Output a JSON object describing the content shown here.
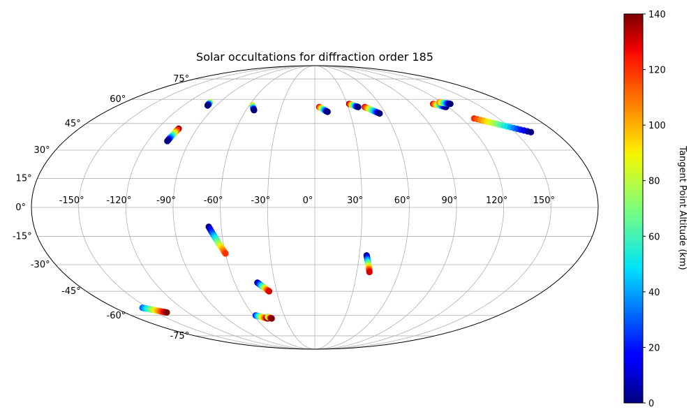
{
  "chart_data": {
    "type": "scatter",
    "projection": "mollweide",
    "title": "Solar occultations for diffraction order 185",
    "x_ticks": [
      "-150°",
      "-120°",
      "-90°",
      "-60°",
      "-30°",
      "0°",
      "30°",
      "60°",
      "90°",
      "120°",
      "150°"
    ],
    "x_tick_values": [
      -150,
      -120,
      -90,
      -60,
      -30,
      0,
      30,
      60,
      90,
      120,
      150
    ],
    "y_ticks": [
      "-75°",
      "-60°",
      "-45°",
      "-30°",
      "-15°",
      "0°",
      "15°",
      "30°",
      "45°",
      "60°",
      "75°"
    ],
    "y_tick_values": [
      -75,
      -60,
      -45,
      -30,
      -15,
      0,
      15,
      30,
      45,
      60,
      75
    ],
    "grid": true,
    "colorbar": {
      "label": "Tangent Point Altitude (km)",
      "colormap": "jet",
      "range": [
        0,
        140
      ],
      "ticks": [
        "0",
        "20",
        "40",
        "60",
        "80",
        "100",
        "120",
        "140"
      ],
      "tick_values": [
        0,
        20,
        40,
        60,
        80,
        100,
        120,
        140
      ]
    },
    "tracks": [
      {
        "start": [
          -104,
          42
        ],
        "end": [
          -106,
          35
        ],
        "alt_start": 140,
        "alt_end": 0
      },
      {
        "start": [
          -99,
          58
        ],
        "end": [
          -98,
          56
        ],
        "alt_start": 90,
        "alt_end": 0
      },
      {
        "start": [
          -57,
          56
        ],
        "end": [
          -53,
          53
        ],
        "alt_start": 100,
        "alt_end": 0
      },
      {
        "start": [
          4,
          55
        ],
        "end": [
          11,
          52
        ],
        "alt_start": 130,
        "alt_end": 0
      },
      {
        "start": [
          32,
          57
        ],
        "end": [
          39,
          55
        ],
        "alt_start": 140,
        "alt_end": 0
      },
      {
        "start": [
          45,
          55
        ],
        "end": [
          55,
          51
        ],
        "alt_start": 130,
        "alt_end": 0
      },
      {
        "start": [
          110,
          57
        ],
        "end": [
          118,
          55
        ],
        "alt_start": 130,
        "alt_end": 0
      },
      {
        "start": [
          118,
          58
        ],
        "end": [
          126,
          57
        ],
        "alt_start": 110,
        "alt_end": 0
      },
      {
        "start": [
          130,
          48
        ],
        "end": [
          162,
          40
        ],
        "alt_start": 120,
        "alt_end": 0
      },
      {
        "start": [
          -68,
          -10
        ],
        "end": [
          -60,
          -24
        ],
        "alt_start": 0,
        "alt_end": 120
      },
      {
        "start": [
          -43,
          -40
        ],
        "end": [
          -36,
          -45
        ],
        "alt_start": 0,
        "alt_end": 130
      },
      {
        "start": [
          -58,
          -60
        ],
        "end": [
          -48,
          -62
        ],
        "alt_start": 20,
        "alt_end": 140
      },
      {
        "start": [
          -47,
          -61
        ],
        "end": [
          -44,
          -62
        ],
        "alt_start": 60,
        "alt_end": 140
      },
      {
        "start": [
          -155,
          -55
        ],
        "end": [
          -140,
          -58
        ],
        "alt_start": 30,
        "alt_end": 140
      },
      {
        "start": [
          35,
          -25
        ],
        "end": [
          39,
          -34
        ],
        "alt_start": 0,
        "alt_end": 130
      }
    ]
  }
}
